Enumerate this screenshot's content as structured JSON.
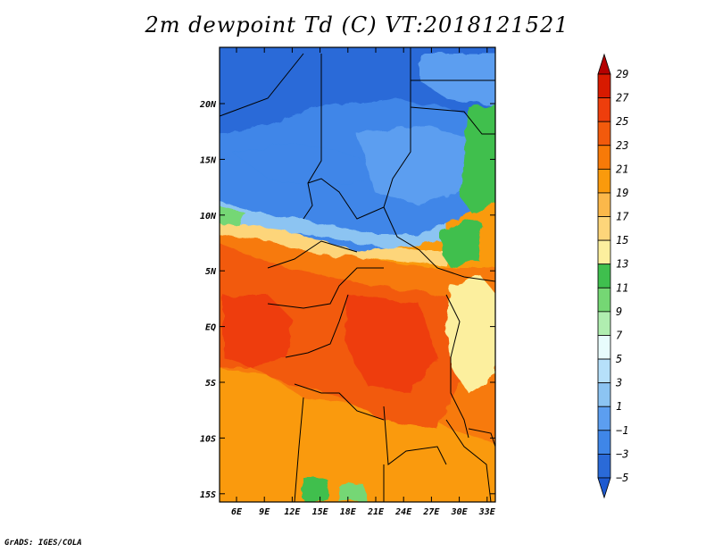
{
  "title": "2m dewpoint Td (C) VT:2018121521",
  "credit": "GrADS: IGES/COLA",
  "map": {
    "lat_labels": [
      "20N",
      "15N",
      "10N",
      "5N",
      "EQ",
      "5S",
      "10S",
      "15S"
    ],
    "lon_labels": [
      "6E",
      "9E",
      "12E",
      "15E",
      "18E",
      "21E",
      "24E",
      "27E",
      "30E",
      "33E"
    ]
  },
  "colorbar": {
    "labels": [
      "29",
      "27",
      "25",
      "23",
      "21",
      "19",
      "17",
      "15",
      "13",
      "11",
      "9",
      "7",
      "5",
      "3",
      "1",
      "−1",
      "−3",
      "−5"
    ],
    "colors": [
      "#b50000",
      "#d81a00",
      "#ee3e0c",
      "#f25a0c",
      "#f77a08",
      "#fa9a0c",
      "#fbb84a",
      "#fdd57a",
      "#fcef9e",
      "#3fbf4e",
      "#75d774",
      "#b0eeb0",
      "#e8fcfc",
      "#b6e0fa",
      "#8cc4f2",
      "#5c9ef0",
      "#3f86e8",
      "#2a6ad8",
      "#1e5ad0"
    ]
  }
}
